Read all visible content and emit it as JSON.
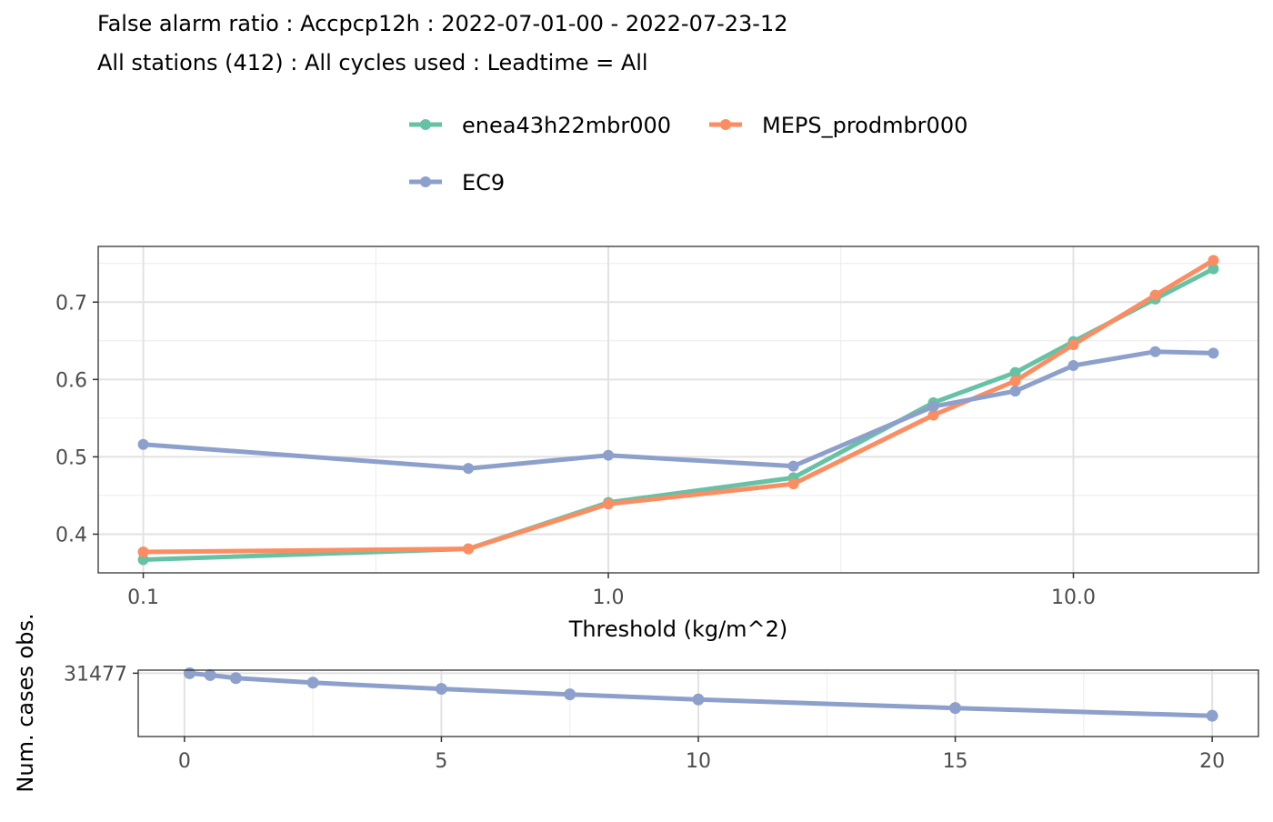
{
  "title_line1": "False alarm ratio : Accpcp12h : 2022-07-01-00 - 2022-07-23-12",
  "title_line2": "All stations (412) : All cycles used : Leadtime = All",
  "legend": [
    {
      "name": "enea43h22mbr000",
      "color": "#66C2A5"
    },
    {
      "name": "MEPS_prodmbr000",
      "color": "#FC8D62"
    },
    {
      "name": "EC9",
      "color": "#8DA0CB"
    }
  ],
  "chart_data": [
    {
      "type": "line",
      "xscale": "log10",
      "xlabel": "Threshold (kg/m^2)",
      "ylabel": "",
      "xlim": [
        0.08,
        25
      ],
      "ylim": [
        0.35,
        0.772
      ],
      "x_ticks": [
        0.1,
        1.0,
        10.0
      ],
      "x_tick_labels": [
        "0.1",
        "1.0",
        "10.0"
      ],
      "y_ticks": [
        0.4,
        0.5,
        0.6,
        0.7
      ],
      "y_tick_labels": [
        "0.4",
        "0.5",
        "0.6",
        "0.7"
      ],
      "grid": true,
      "legend_position": "top",
      "x": [
        0.1,
        0.5,
        1,
        2.5,
        5,
        7.5,
        10,
        15,
        20
      ],
      "series": [
        {
          "name": "enea43h22mbr000",
          "color": "#66C2A5",
          "values": [
            0.367,
            0.381,
            0.441,
            0.473,
            0.57,
            0.609,
            0.649,
            0.704,
            0.743
          ]
        },
        {
          "name": "MEPS_prodmbr000",
          "color": "#FC8D62",
          "values": [
            0.377,
            0.381,
            0.439,
            0.465,
            0.554,
            0.598,
            0.645,
            0.709,
            0.754
          ]
        },
        {
          "name": "EC9",
          "color": "#8DA0CB",
          "values": [
            0.516,
            0.485,
            0.502,
            0.488,
            0.565,
            0.585,
            0.618,
            0.636,
            0.634
          ]
        }
      ]
    },
    {
      "type": "line",
      "xscale": "linear",
      "xlabel": "",
      "ylabel": "Num. cases obs.",
      "xlim": [
        -0.9,
        20.9
      ],
      "ylim": [
        0,
        33000
      ],
      "x_ticks": [
        0,
        5,
        10,
        15,
        20
      ],
      "x_tick_labels": [
        "0",
        "5",
        "10",
        "15",
        "20"
      ],
      "y_ticks": [
        31477
      ],
      "y_tick_labels": [
        "31477"
      ],
      "grid": true,
      "x": [
        0.1,
        0.5,
        1,
        2.5,
        5,
        7.5,
        10,
        15,
        20
      ],
      "series": [
        {
          "name": "",
          "color": "#8DA0CB",
          "values": [
            31477,
            30530,
            29050,
            26770,
            23700,
            20950,
            18400,
            14170,
            10320
          ]
        }
      ]
    }
  ]
}
